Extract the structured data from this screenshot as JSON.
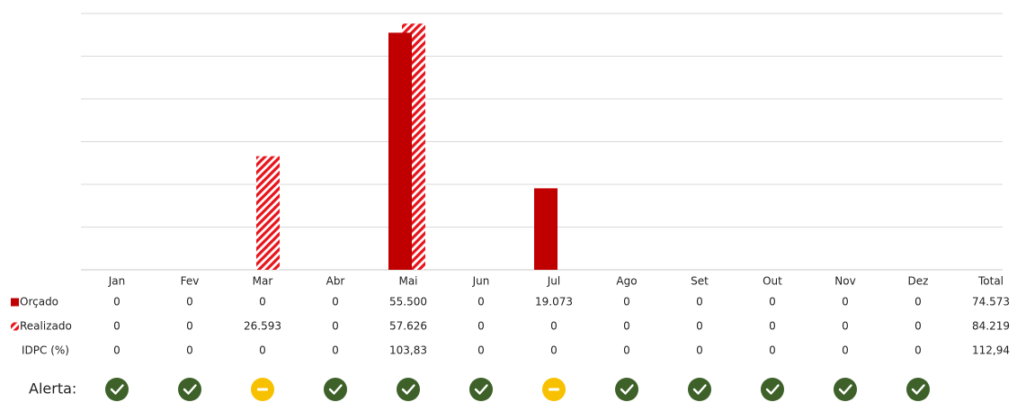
{
  "chart_data": {
    "type": "bar",
    "categories": [
      "Jan",
      "Fev",
      "Mar",
      "Abr",
      "Mai",
      "Jun",
      "Jul",
      "Ago",
      "Set",
      "Out",
      "Nov",
      "Dez"
    ],
    "total_header": "Total",
    "series": [
      {
        "name": "Orçado",
        "color": "#c00000",
        "fill": "solid",
        "values": [
          0,
          0,
          0,
          0,
          55500,
          0,
          19073,
          0,
          0,
          0,
          0,
          0
        ],
        "value_labels": [
          "0",
          "0",
          "0",
          "0",
          "55.500",
          "0",
          "19.073",
          "0",
          "0",
          "0",
          "0",
          "0"
        ],
        "total": 74573,
        "total_label": "74.573"
      },
      {
        "name": "Realizado",
        "color": "#e8141c",
        "fill": "hatch",
        "values": [
          0,
          0,
          26593,
          0,
          57626,
          0,
          0,
          0,
          0,
          0,
          0,
          0
        ],
        "value_labels": [
          "0",
          "0",
          "26.593",
          "0",
          "57.626",
          "0",
          "0",
          "0",
          "0",
          "0",
          "0",
          "0"
        ],
        "total": 84219,
        "total_label": "84.219"
      }
    ],
    "idpc": {
      "name": "IDPC (%)",
      "values": [
        0,
        0,
        0,
        0,
        103.83,
        0,
        0,
        0,
        0,
        0,
        0,
        0
      ],
      "value_labels": [
        "0",
        "0",
        "0",
        "0",
        "103,83",
        "0",
        "0",
        "0",
        "0",
        "0",
        "0",
        "0"
      ],
      "total": 112.94,
      "total_label": "112,94"
    },
    "alerts": {
      "label": "Alerta:",
      "values": [
        "ok",
        "ok",
        "warn",
        "ok",
        "ok",
        "ok",
        "warn",
        "ok",
        "ok",
        "ok",
        "ok",
        "ok"
      ]
    },
    "ylim": [
      0,
      60000
    ],
    "yticks": [
      0,
      10000,
      20000,
      30000,
      40000,
      50000,
      60000
    ],
    "grid": true
  }
}
